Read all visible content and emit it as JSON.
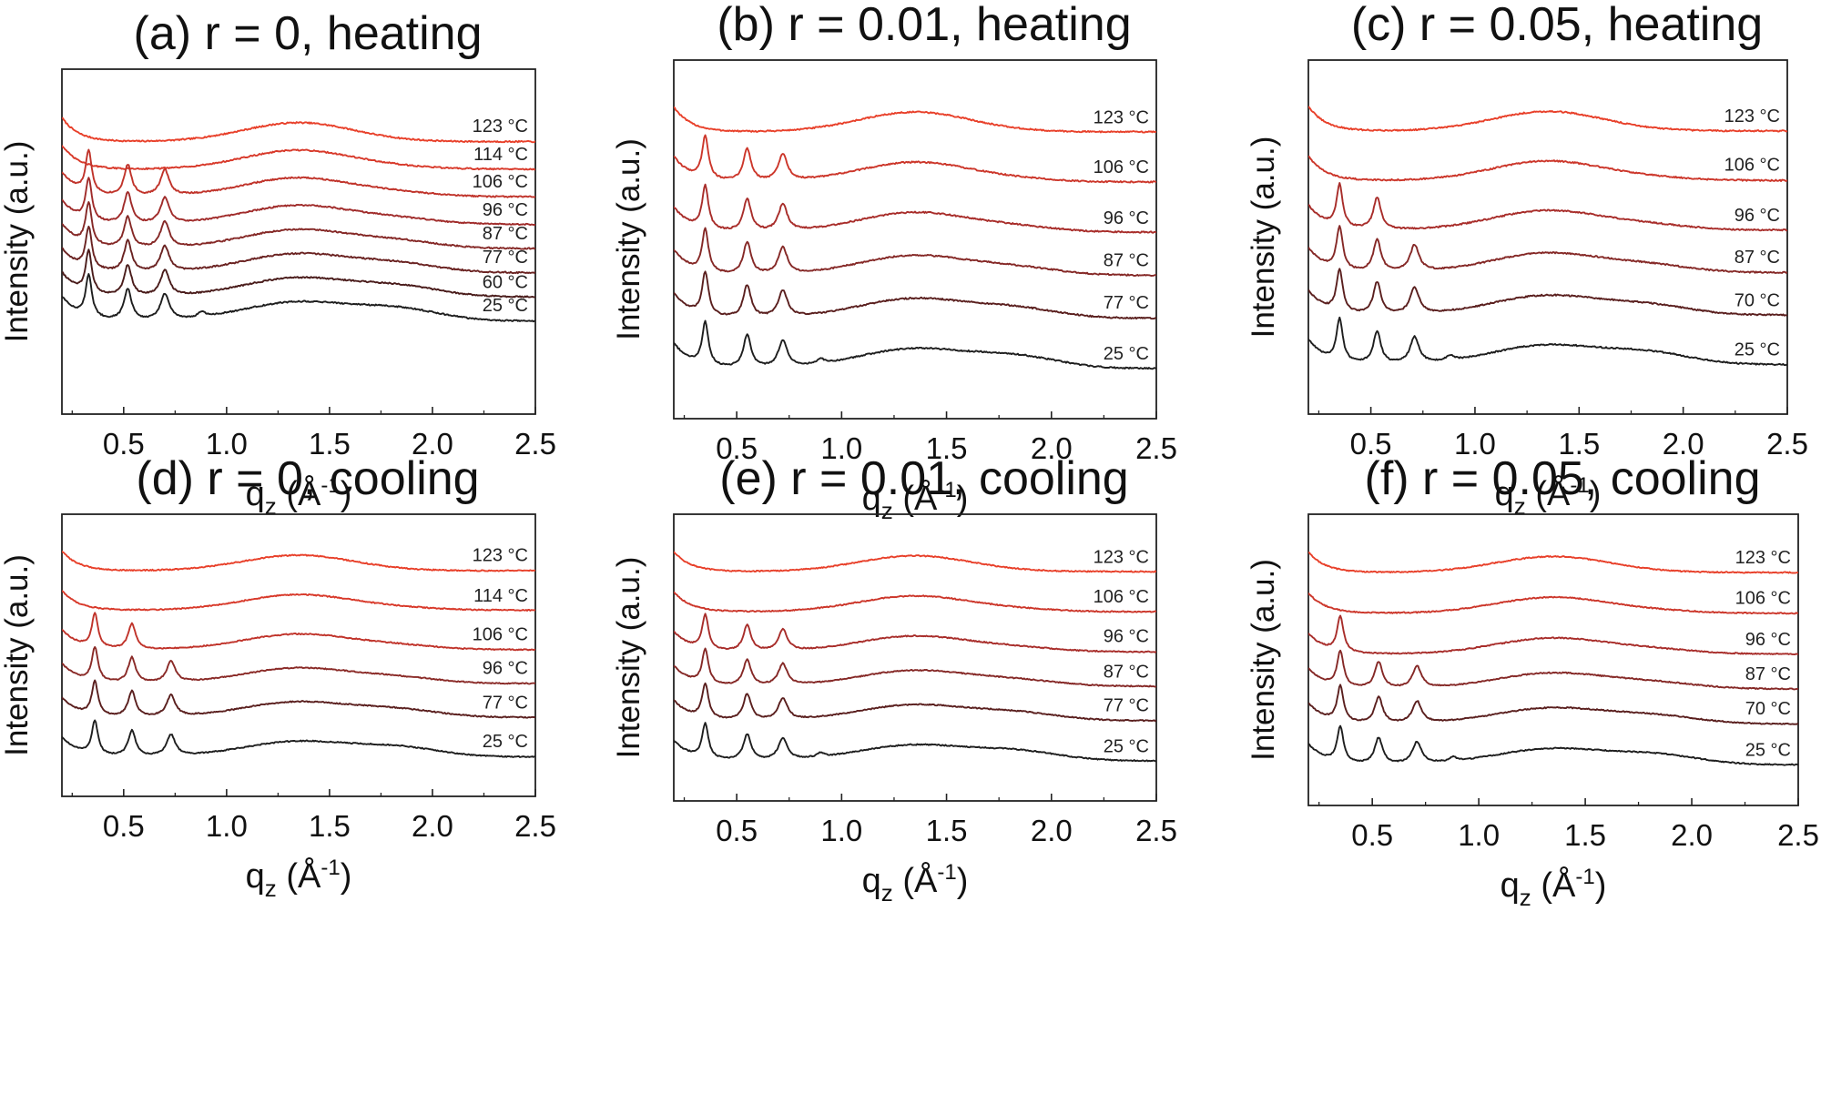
{
  "chart_data": [
    {
      "type": "line",
      "panel": "a",
      "title": "(a) r = 0, heating",
      "ylabel": "Intensity (a.u.)",
      "xlabel": {
        "base": "q",
        "sub": "z",
        "unit": " (Å",
        "sup": "-1",
        "close": ")"
      },
      "xlim": [
        0.2,
        2.5
      ],
      "xticks": [
        "0.5",
        "1.0",
        "1.5",
        "2.0",
        "2.5"
      ],
      "xtick_values": [
        0.5,
        1.0,
        1.5,
        2.0,
        2.5
      ],
      "y_ticks_shown": false,
      "series": [
        {
          "name": "123 °C",
          "color": "#e8402a",
          "peaks": []
        },
        {
          "name": "114 °C",
          "color": "#d8392a",
          "peaks": []
        },
        {
          "name": "106 °C",
          "color": "#c0332a",
          "peaks": [
            0.33,
            0.52,
            0.7
          ]
        },
        {
          "name": "96 °C",
          "color": "#a02b2a",
          "peaks": [
            0.33,
            0.52,
            0.7
          ]
        },
        {
          "name": "87 °C",
          "color": "#852826",
          "peaks": [
            0.33,
            0.52,
            0.7
          ]
        },
        {
          "name": "77 °C",
          "color": "#6a2221",
          "peaks": [
            0.33,
            0.52,
            0.7
          ]
        },
        {
          "name": "60 °C",
          "color": "#4a1c1b",
          "peaks": [
            0.33,
            0.52,
            0.7
          ]
        },
        {
          "name": "25 °C",
          "color": "#1e1e1e",
          "peaks": [
            0.33,
            0.52,
            0.7,
            0.88
          ]
        }
      ]
    },
    {
      "type": "line",
      "panel": "b",
      "title": "(b) r = 0.01, heating",
      "ylabel": "Intensity (a.u.)",
      "xlabel": {
        "base": "q",
        "sub": "z",
        "unit": " (Å",
        "sup": "-1",
        "close": ")"
      },
      "xlim": [
        0.2,
        2.5
      ],
      "xticks": [
        "0.5",
        "1.0",
        "1.5",
        "2.0",
        "2.5"
      ],
      "xtick_values": [
        0.5,
        1.0,
        1.5,
        2.0,
        2.5
      ],
      "y_ticks_shown": false,
      "series": [
        {
          "name": "123 °C",
          "color": "#e8402a",
          "peaks": []
        },
        {
          "name": "106 °C",
          "color": "#cc362a",
          "peaks": [
            0.35,
            0.55,
            0.72
          ]
        },
        {
          "name": "96 °C",
          "color": "#a82d2a",
          "peaks": [
            0.35,
            0.55,
            0.72
          ]
        },
        {
          "name": "87 °C",
          "color": "#852826",
          "peaks": [
            0.35,
            0.55,
            0.72
          ]
        },
        {
          "name": "77 °C",
          "color": "#5a1f1e",
          "peaks": [
            0.35,
            0.55,
            0.72
          ]
        },
        {
          "name": "25 °C",
          "color": "#1e1e1e",
          "peaks": [
            0.35,
            0.55,
            0.72,
            0.9
          ]
        }
      ]
    },
    {
      "type": "line",
      "panel": "c",
      "title": "(c) r = 0.05, heating",
      "ylabel": "Intensity (a.u.)",
      "xlabel": {
        "base": "q",
        "sub": "z",
        "unit": " (Å",
        "sup": "-1",
        "close": ")"
      },
      "xlim": [
        0.2,
        2.5
      ],
      "xticks": [
        "0.5",
        "1.0",
        "1.5",
        "2.0",
        "2.5"
      ],
      "xtick_values": [
        0.5,
        1.0,
        1.5,
        2.0,
        2.5
      ],
      "y_ticks_shown": false,
      "series": [
        {
          "name": "123 °C",
          "color": "#e8402a",
          "peaks": []
        },
        {
          "name": "106 °C",
          "color": "#cc362a",
          "peaks": []
        },
        {
          "name": "96 °C",
          "color": "#a82d2a",
          "peaks": [
            0.35,
            0.53
          ]
        },
        {
          "name": "87 °C",
          "color": "#852826",
          "peaks": [
            0.35,
            0.53,
            0.71
          ]
        },
        {
          "name": "70 °C",
          "color": "#5a1f1e",
          "peaks": [
            0.35,
            0.53,
            0.71
          ]
        },
        {
          "name": "25 °C",
          "color": "#1e1e1e",
          "peaks": [
            0.35,
            0.53,
            0.71,
            0.88
          ]
        }
      ]
    },
    {
      "type": "line",
      "panel": "d",
      "title": "(d) r = 0, cooling",
      "ylabel": "Intensity (a.u.)",
      "xlabel": {
        "base": "q",
        "sub": "z",
        "unit": " (Å",
        "sup": "-1",
        "close": ")"
      },
      "xlim": [
        0.2,
        2.5
      ],
      "xticks": [
        "0.5",
        "1.0",
        "1.5",
        "2.0",
        "2.5"
      ],
      "xtick_values": [
        0.5,
        1.0,
        1.5,
        2.0,
        2.5
      ],
      "y_ticks_shown": false,
      "series": [
        {
          "name": "123 °C",
          "color": "#e8402a",
          "peaks": []
        },
        {
          "name": "114 °C",
          "color": "#d8392a",
          "peaks": []
        },
        {
          "name": "106 °C",
          "color": "#c0332a",
          "peaks": [
            0.36,
            0.54
          ]
        },
        {
          "name": "96 °C",
          "color": "#8a2a27",
          "peaks": [
            0.36,
            0.54,
            0.73
          ]
        },
        {
          "name": "77 °C",
          "color": "#5a1f1e",
          "peaks": [
            0.36,
            0.54,
            0.73
          ]
        },
        {
          "name": "25 °C",
          "color": "#1e1e1e",
          "peaks": [
            0.36,
            0.54,
            0.73
          ]
        }
      ]
    },
    {
      "type": "line",
      "panel": "e",
      "title": "(e) r = 0.01, cooling",
      "ylabel": "Intensity (a.u.)",
      "xlabel": {
        "base": "q",
        "sub": "z",
        "unit": " (Å",
        "sup": "-1",
        "close": ")"
      },
      "xlim": [
        0.2,
        2.5
      ],
      "xticks": [
        "0.5",
        "1.0",
        "1.5",
        "2.0",
        "2.5"
      ],
      "xtick_values": [
        0.5,
        1.0,
        1.5,
        2.0,
        2.5
      ],
      "y_ticks_shown": false,
      "series": [
        {
          "name": "123 °C",
          "color": "#e8402a",
          "peaks": []
        },
        {
          "name": "106 °C",
          "color": "#cc362a",
          "peaks": []
        },
        {
          "name": "96 °C",
          "color": "#a82d2a",
          "peaks": [
            0.35,
            0.55,
            0.72
          ]
        },
        {
          "name": "87 °C",
          "color": "#852826",
          "peaks": [
            0.35,
            0.55,
            0.72
          ]
        },
        {
          "name": "77 °C",
          "color": "#5a1f1e",
          "peaks": [
            0.35,
            0.55,
            0.72
          ]
        },
        {
          "name": "25 °C",
          "color": "#1e1e1e",
          "peaks": [
            0.35,
            0.55,
            0.72,
            0.9
          ]
        }
      ]
    },
    {
      "type": "line",
      "panel": "f",
      "title": "(f) r = 0.05, cooling",
      "ylabel": "Intensity (a.u.)",
      "xlabel": {
        "base": "q",
        "sub": "z",
        "unit": " (Å",
        "sup": "-1",
        "close": ")"
      },
      "xlim": [
        0.2,
        2.5
      ],
      "xticks": [
        "0.5",
        "1.0",
        "1.5",
        "2.0",
        "2.5"
      ],
      "xtick_values": [
        0.5,
        1.0,
        1.5,
        2.0,
        2.5
      ],
      "y_ticks_shown": false,
      "series": [
        {
          "name": "123 °C",
          "color": "#e8402a",
          "peaks": []
        },
        {
          "name": "106 °C",
          "color": "#cc362a",
          "peaks": []
        },
        {
          "name": "96 °C",
          "color": "#a82d2a",
          "peaks": [
            0.35
          ]
        },
        {
          "name": "87 °C",
          "color": "#852826",
          "peaks": [
            0.35,
            0.53,
            0.71
          ]
        },
        {
          "name": "70 °C",
          "color": "#5a1f1e",
          "peaks": [
            0.35,
            0.53,
            0.71
          ]
        },
        {
          "name": "25 °C",
          "color": "#1e1e1e",
          "peaks": [
            0.35,
            0.53,
            0.71,
            0.88
          ]
        }
      ]
    }
  ]
}
